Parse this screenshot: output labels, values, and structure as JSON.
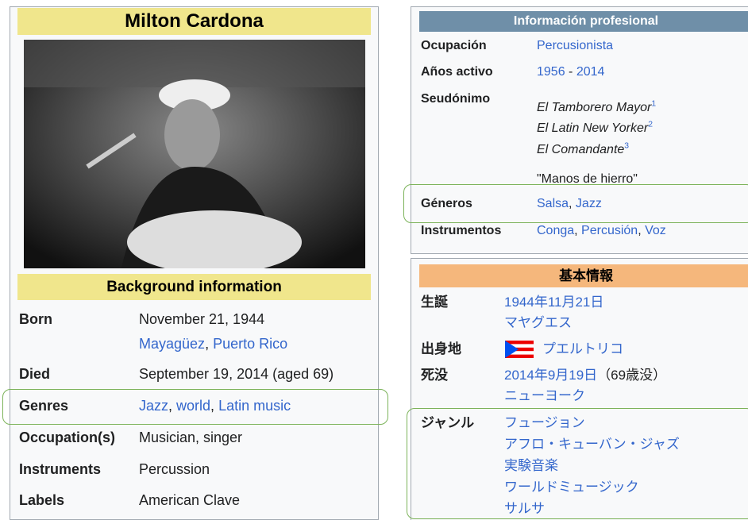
{
  "english": {
    "title": "Milton Cardona",
    "section": "Background information",
    "rows": [
      {
        "label": "Born",
        "lines": [
          [
            {
              "text": "November 21, 1944"
            }
          ],
          [
            {
              "text": "Mayagüez",
              "link": true
            },
            {
              "text": ", "
            },
            {
              "text": "Puerto Rico",
              "link": true
            }
          ]
        ]
      },
      {
        "label": "Died",
        "lines": [
          [
            {
              "text": "September 19, 2014 (aged 69)"
            }
          ]
        ]
      },
      {
        "label": "Genres",
        "lines": [
          [
            {
              "text": "Jazz",
              "link": true
            },
            {
              "text": ", "
            },
            {
              "text": "world",
              "link": true
            },
            {
              "text": ", "
            },
            {
              "text": "Latin music",
              "link": true
            }
          ]
        ]
      },
      {
        "label": "Occupation(s)",
        "lines": [
          [
            {
              "text": "Musician, singer"
            }
          ]
        ]
      },
      {
        "label": "Instruments",
        "lines": [
          [
            {
              "text": "Percussion"
            }
          ]
        ]
      },
      {
        "label": "Labels",
        "lines": [
          [
            {
              "text": "American Clave"
            }
          ]
        ]
      }
    ]
  },
  "spanish": {
    "section": "Información profesional",
    "rows": [
      {
        "label": "Ocupación",
        "lines": [
          [
            {
              "text": "Percusionista",
              "link": true
            }
          ]
        ]
      },
      {
        "label": "Años activo",
        "lines": [
          [
            {
              "text": "1956",
              "link": true
            },
            {
              "text": " - "
            },
            {
              "text": "2014",
              "link": true
            }
          ]
        ]
      },
      {
        "label": "Seudónimo",
        "lines": [
          [
            {
              "text": "El Tamborero Mayor",
              "italic": true
            },
            {
              "text": "1",
              "sup": true,
              "link": true
            }
          ],
          [
            {
              "text": "El Latin New Yorker",
              "italic": true
            },
            {
              "text": "2",
              "sup": true,
              "link": true
            }
          ],
          [
            {
              "text": "El Comandante",
              "italic": true
            },
            {
              "text": "3",
              "sup": true,
              "link": true
            }
          ],
          [
            {
              "text": "\"Manos de hierro\""
            }
          ]
        ]
      },
      {
        "label": "Géneros",
        "lines": [
          [
            {
              "text": "Salsa",
              "link": true
            },
            {
              "text": ", "
            },
            {
              "text": "Jazz",
              "link": true
            }
          ]
        ]
      },
      {
        "label": "Instrumentos",
        "lines": [
          [
            {
              "text": "Conga",
              "link": true
            },
            {
              "text": ", "
            },
            {
              "text": "Percusión",
              "link": true
            },
            {
              "text": ", "
            },
            {
              "text": "Voz",
              "link": true
            }
          ]
        ]
      }
    ]
  },
  "japanese": {
    "section": "基本情報",
    "rows": [
      {
        "label": "生誕",
        "lines": [
          [
            {
              "text": "1944年11月21日",
              "link": true
            }
          ],
          [
            {
              "text": "マヤグエス",
              "link": true
            }
          ]
        ]
      },
      {
        "label": "出身地",
        "lines": [
          [
            {
              "text": "プエルトリコ",
              "link": true
            }
          ]
        ]
      },
      {
        "label": "死没",
        "lines": [
          [
            {
              "text": "2014年9月19日",
              "link": true
            },
            {
              "text": "（69歳没）"
            }
          ],
          [
            {
              "text": "ニューヨーク",
              "link": true
            }
          ]
        ]
      },
      {
        "label": "ジャンル",
        "lines": [
          [
            {
              "text": "フュージョン",
              "link": true
            }
          ],
          [
            {
              "text": "アフロ・キューバン・ジャズ",
              "link": true
            }
          ],
          [
            {
              "text": "実験音楽",
              "link": true
            }
          ],
          [
            {
              "text": "ワールドミュージック",
              "link": true
            }
          ],
          [
            {
              "text": "サルサ",
              "link": true
            }
          ]
        ]
      }
    ]
  }
}
